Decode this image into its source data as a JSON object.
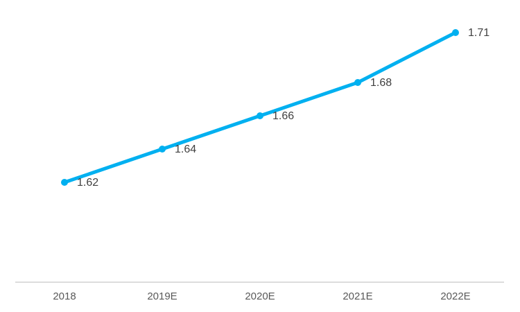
{
  "chart_data": {
    "type": "line",
    "categories": [
      "2018",
      "2019E",
      "2020E",
      "2021E",
      "2022E"
    ],
    "series": [
      {
        "color": "#00b0f0",
        "values": [
          1.62,
          1.64,
          1.66,
          1.68,
          1.71
        ]
      }
    ]
  }
}
